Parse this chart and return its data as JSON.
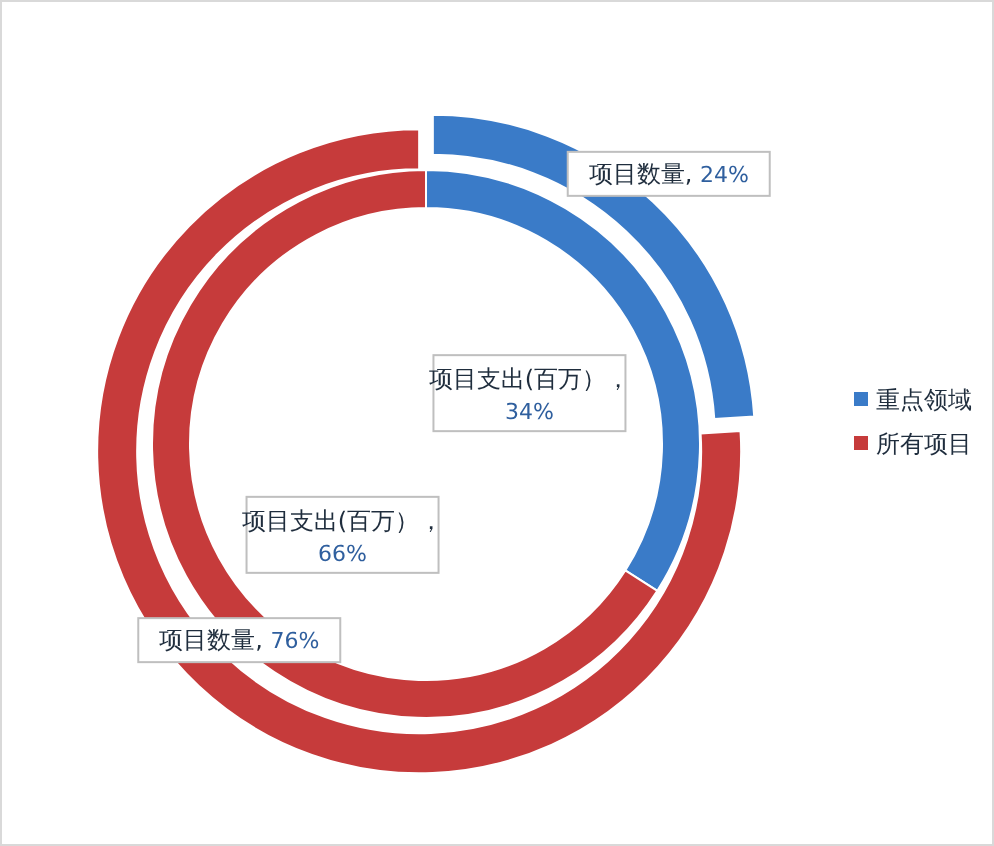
{
  "chart_data": {
    "type": "donut",
    "categories": [
      "重点领域",
      "所有项目"
    ],
    "colors": [
      "#3a7bc8",
      "#c63b3b"
    ],
    "series": [
      {
        "values": [
          24,
          76
        ],
        "value_labels": [
          "项目数量, 24%",
          "项目数量, 76%"
        ]
      },
      {
        "values": [
          34,
          66
        ],
        "value_labels": [
          "项目支出(百万），34%",
          "项目支出(百万），66%"
        ]
      }
    ],
    "legend": "right"
  }
}
